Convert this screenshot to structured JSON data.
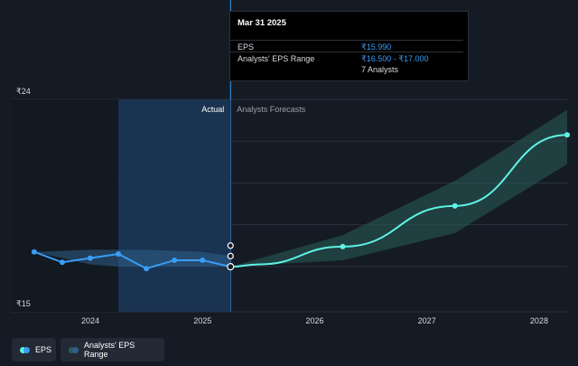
{
  "tooltip": {
    "title": "Mar 31 2025",
    "eps_label": "EPS",
    "eps_value": "₹15.990",
    "range_label": "Analysts' EPS Range",
    "range_value": "₹16.500 - ₹17.000",
    "analysts": "7 Analysts"
  },
  "legend": {
    "eps": "EPS",
    "range": "Analysts' EPS Range"
  },
  "colors": {
    "background": "#151b24",
    "eps_line": "#3a9df5",
    "forecast_line": "#5ef3e4",
    "range_fill": "#2a5d5a"
  },
  "chart_data": {
    "type": "line",
    "section_labels": {
      "actual": "Actual",
      "forecast": "Analysts Forecasts"
    },
    "y_tick_labels": [
      "₹24",
      "₹15"
    ],
    "ylim": [
      15,
      24
    ],
    "x_tick_labels": [
      "2024",
      "2025",
      "2026",
      "2027",
      "2028"
    ],
    "x_ticks": [
      2024.0,
      2025.0,
      2026.0,
      2027.0,
      2028.0
    ],
    "xlim": [
      2023.3,
      2028.25
    ],
    "grid": true,
    "legend_position": "bottom-left",
    "series": [
      {
        "kind": "eps_actual",
        "x": [
          2023.5,
          2023.75,
          2024.0,
          2024.25,
          2024.5,
          2024.75,
          2025.0,
          2025.25
        ],
        "y": [
          16.7,
          16.2,
          16.4,
          16.6,
          15.9,
          16.3,
          16.3,
          15.99
        ]
      },
      {
        "kind": "eps_range_past",
        "x": [
          2023.5,
          2023.75,
          2024.0,
          2024.25,
          2024.5,
          2024.75,
          2025.0,
          2025.25
        ],
        "low": [
          16.7,
          16.4,
          16.1,
          15.99,
          15.99,
          15.99,
          15.99,
          15.99
        ],
        "high": [
          16.7,
          16.75,
          16.8,
          16.8,
          16.8,
          16.75,
          16.7,
          16.5
        ]
      },
      {
        "kind": "eps_forecast",
        "x": [
          2025.25,
          2025.5,
          2026.25,
          2027.25,
          2028.25
        ],
        "y": [
          15.99,
          16.1,
          16.95,
          18.9,
          22.3
        ]
      },
      {
        "kind": "eps_range_forecast",
        "x": [
          2025.25,
          2026.25,
          2027.25,
          2028.25
        ],
        "low": [
          15.99,
          16.3,
          17.6,
          20.9
        ],
        "high": [
          15.99,
          17.5,
          20.1,
          23.5
        ]
      },
      {
        "kind": "past_extra_markers",
        "x": [
          2025.25,
          2025.25
        ],
        "y": [
          17.0,
          16.5
        ]
      }
    ]
  }
}
